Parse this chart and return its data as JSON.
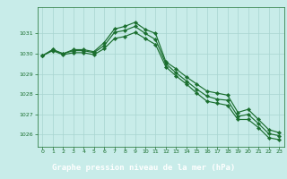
{
  "background_color": "#c8ece9",
  "grid_color": "#a8d4d0",
  "line_color": "#1a6e2e",
  "xlabel": "Graphe pression niveau de la mer (hPa)",
  "xlabel_bg": "#2a6e3a",
  "xlabel_fg": "#ffffff",
  "ylim": [
    1025.4,
    1032.3
  ],
  "xlim": [
    -0.5,
    23.5
  ],
  "yticks": [
    1026,
    1027,
    1028,
    1029,
    1030,
    1031
  ],
  "xticks": [
    0,
    1,
    2,
    3,
    4,
    5,
    6,
    7,
    8,
    9,
    10,
    11,
    12,
    13,
    14,
    15,
    16,
    17,
    18,
    19,
    20,
    21,
    22,
    23
  ],
  "series1": [
    1029.9,
    1030.2,
    1030.0,
    1030.2,
    1030.2,
    1030.1,
    1030.55,
    1031.22,
    1031.35,
    1031.55,
    1031.2,
    1031.0,
    1029.6,
    1029.25,
    1028.85,
    1028.5,
    1028.15,
    1028.05,
    1027.95,
    1027.1,
    1027.25,
    1026.75,
    1026.25,
    1026.1
  ],
  "series2": [
    1029.9,
    1030.2,
    1030.0,
    1030.15,
    1030.15,
    1030.05,
    1030.4,
    1031.05,
    1031.15,
    1031.35,
    1031.0,
    1030.7,
    1029.5,
    1029.05,
    1028.65,
    1028.25,
    1027.9,
    1027.75,
    1027.7,
    1026.9,
    1027.0,
    1026.55,
    1026.05,
    1025.95
  ],
  "series3": [
    1029.9,
    1030.15,
    1029.95,
    1030.05,
    1030.05,
    1029.95,
    1030.25,
    1030.75,
    1030.85,
    1031.05,
    1030.75,
    1030.45,
    1029.35,
    1028.9,
    1028.5,
    1028.05,
    1027.65,
    1027.55,
    1027.45,
    1026.75,
    1026.75,
    1026.35,
    1025.85,
    1025.75
  ]
}
